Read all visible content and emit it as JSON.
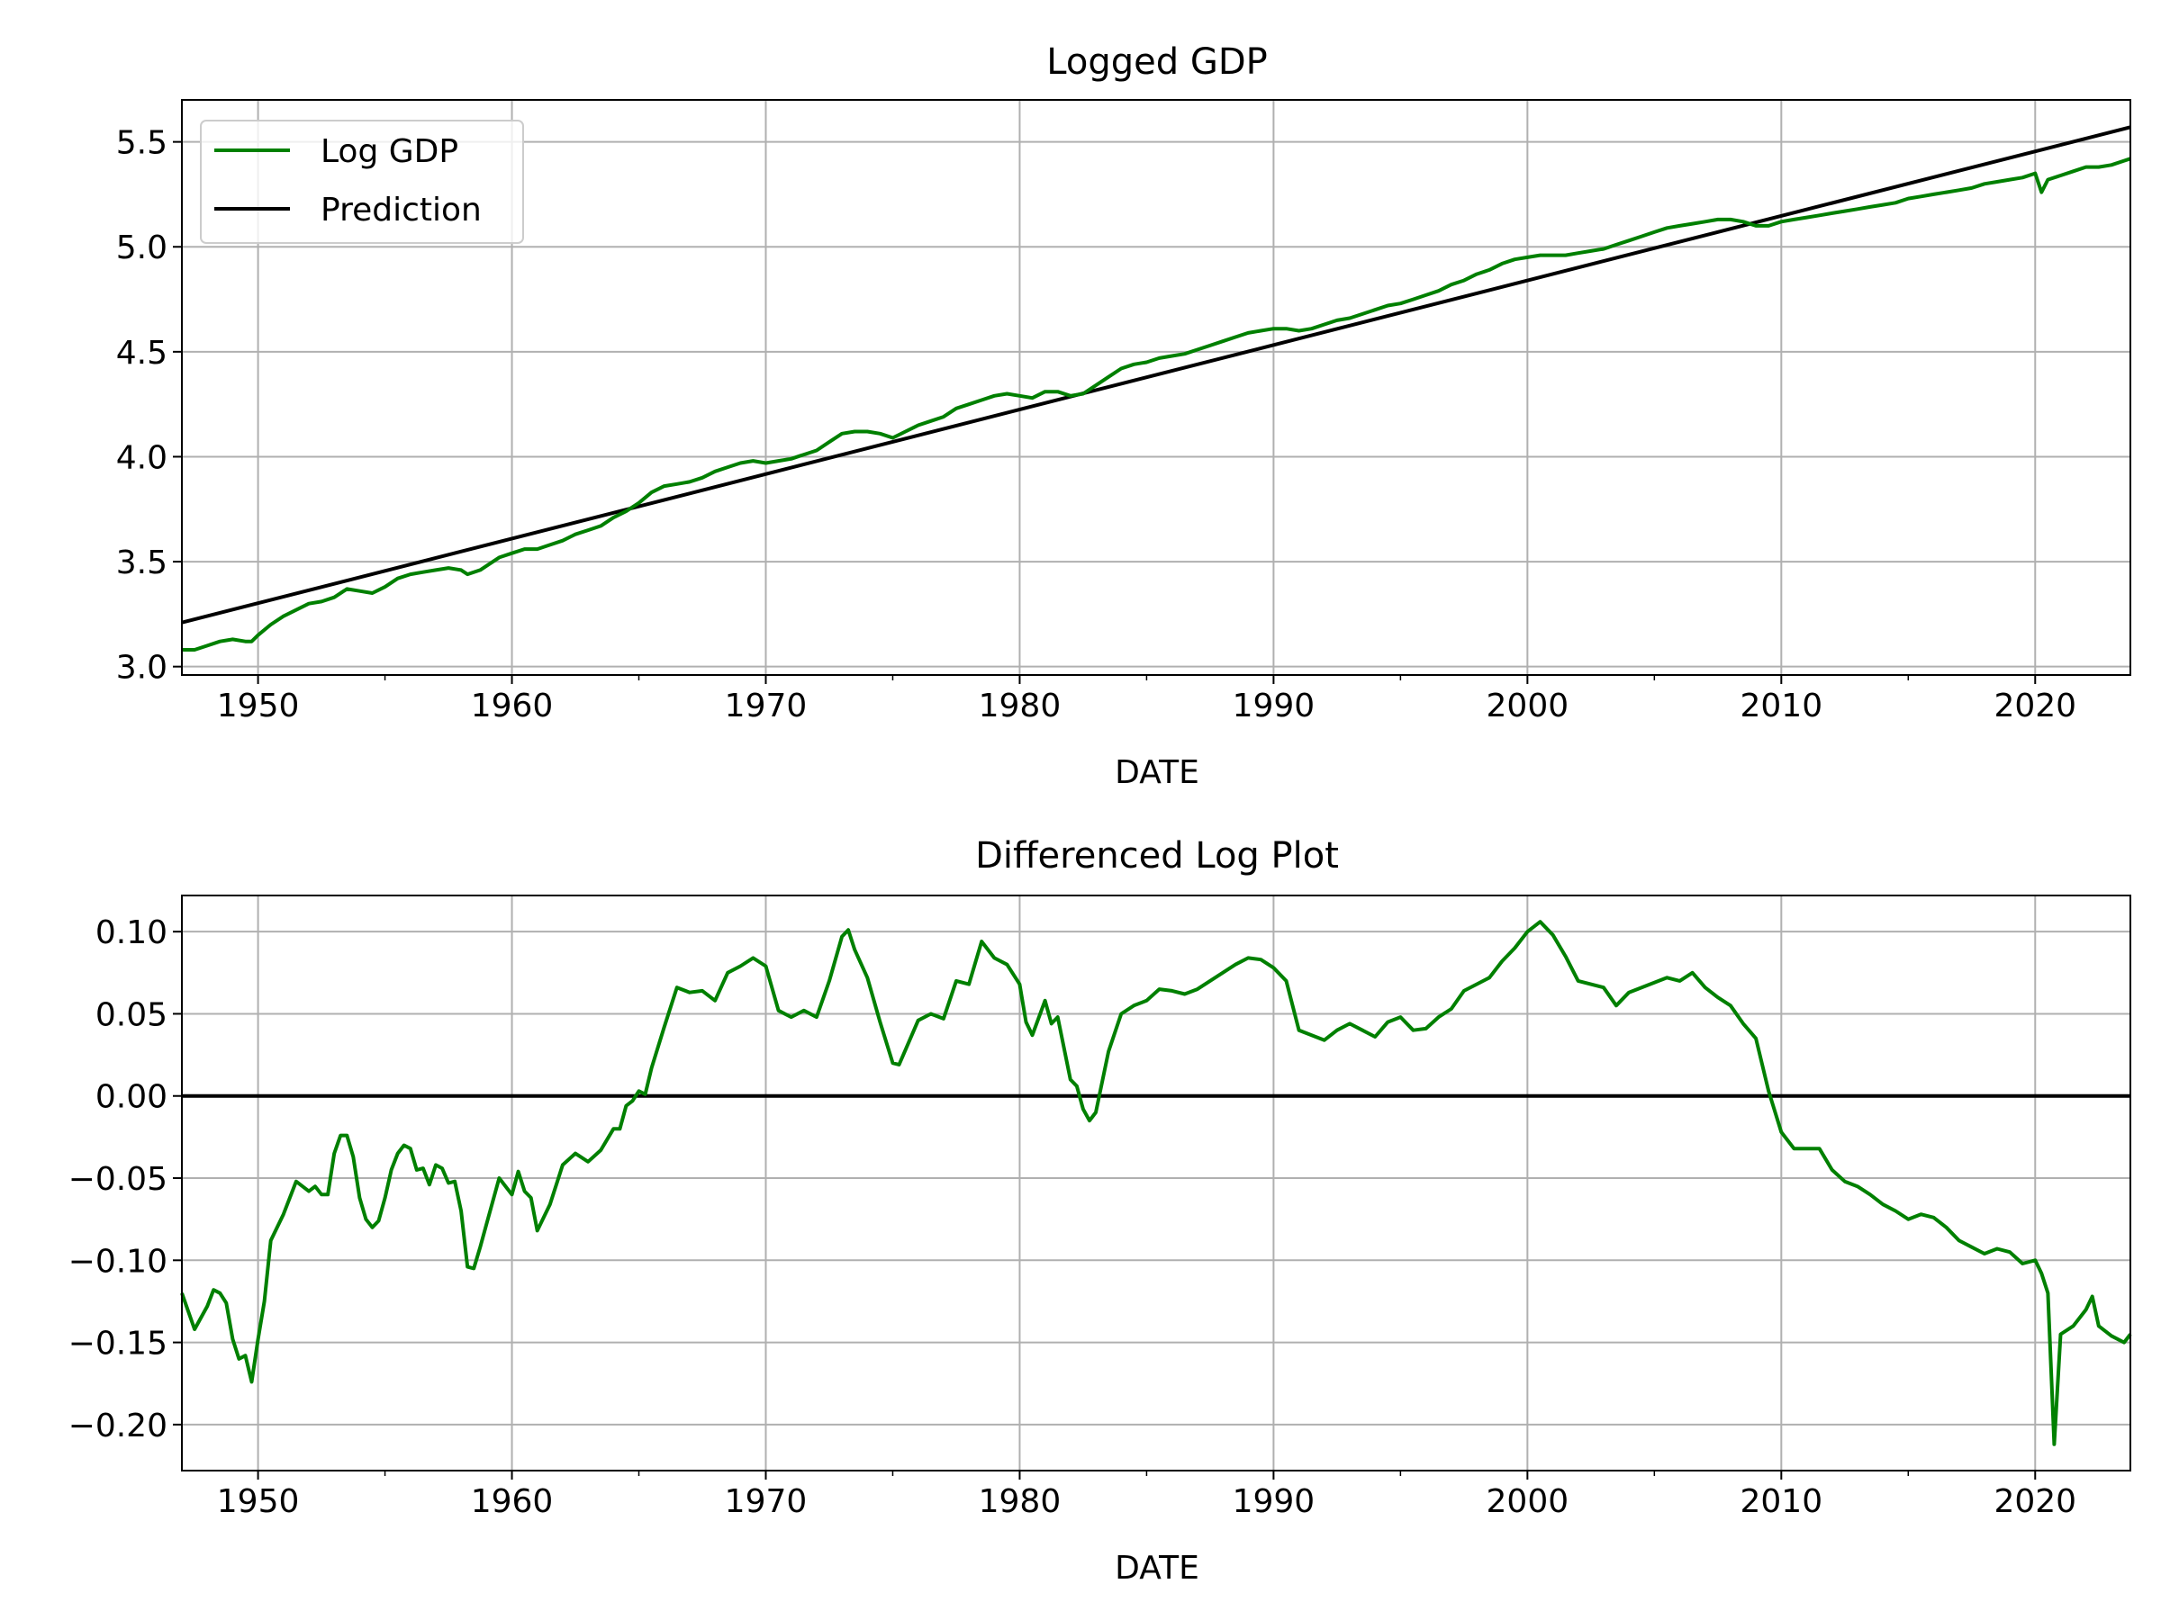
{
  "chart_data": [
    {
      "type": "line",
      "title": "Logged GDP",
      "xlabel": "DATE",
      "ylabel": "",
      "xlim": [
        1947.0,
        2023.75
      ],
      "ylim": [
        2.96,
        5.7
      ],
      "xticks": [
        1950,
        1960,
        1970,
        1980,
        1990,
        2000,
        2010,
        2020
      ],
      "xtick_labels": [
        "1950",
        "1960",
        "1970",
        "1980",
        "1990",
        "2000",
        "2010",
        "2020"
      ],
      "yticks": [
        3.0,
        3.5,
        4.0,
        4.5,
        5.0,
        5.5
      ],
      "ytick_labels": [
        "3.0",
        "3.5",
        "4.0",
        "4.5",
        "5.0",
        "5.5"
      ],
      "grid": true,
      "legend": "top-left",
      "series": [
        {
          "name": "Log GDP",
          "color": "#008000",
          "x": [
            1947.0,
            1947.5,
            1948.0,
            1948.5,
            1949.0,
            1949.5,
            1949.75,
            1950.0,
            1950.5,
            1951.0,
            1951.5,
            1952.0,
            1952.5,
            1953.0,
            1953.5,
            1954.0,
            1954.5,
            1955.0,
            1955.5,
            1956.0,
            1956.5,
            1957.0,
            1957.5,
            1958.0,
            1958.25,
            1958.75,
            1959.5,
            1960.0,
            1960.5,
            1961.0,
            1961.5,
            1962.0,
            1962.5,
            1963.0,
            1963.5,
            1964.0,
            1964.5,
            1965.0,
            1965.5,
            1966.0,
            1966.5,
            1967.0,
            1967.5,
            1968.0,
            1968.5,
            1969.0,
            1969.5,
            1970.0,
            1970.5,
            1971.0,
            1971.5,
            1972.0,
            1972.5,
            1973.0,
            1973.5,
            1974.0,
            1974.5,
            1975.0,
            1975.5,
            1976.0,
            1976.5,
            1977.0,
            1977.5,
            1978.0,
            1978.5,
            1979.0,
            1979.5,
            1980.0,
            1980.5,
            1981.0,
            1981.5,
            1982.0,
            1982.5,
            1983.0,
            1983.5,
            1984.0,
            1984.5,
            1985.0,
            1985.5,
            1986.0,
            1986.5,
            1987.0,
            1987.5,
            1988.0,
            1988.5,
            1989.0,
            1989.5,
            1990.0,
            1990.5,
            1991.0,
            1991.5,
            1992.0,
            1992.5,
            1993.0,
            1993.5,
            1994.0,
            1994.5,
            1995.0,
            1995.5,
            1996.0,
            1996.5,
            1997.0,
            1997.5,
            1998.0,
            1998.5,
            1999.0,
            1999.5,
            2000.0,
            2000.5,
            2001.0,
            2001.5,
            2002.0,
            2002.5,
            2003.0,
            2003.5,
            2004.0,
            2004.5,
            2005.0,
            2005.5,
            2006.0,
            2006.5,
            2007.0,
            2007.5,
            2008.0,
            2008.5,
            2009.0,
            2009.5,
            2010.0,
            2010.5,
            2011.0,
            2011.5,
            2012.0,
            2012.5,
            2013.0,
            2013.5,
            2014.0,
            2014.5,
            2015.0,
            2015.5,
            2016.0,
            2016.5,
            2017.0,
            2017.5,
            2018.0,
            2018.5,
            2019.0,
            2019.5,
            2020.0,
            2020.25,
            2020.5,
            2021.0,
            2021.5,
            2022.0,
            2022.5,
            2023.0,
            2023.5,
            2023.75
          ],
          "y": [
            3.08,
            3.08,
            3.1,
            3.12,
            3.13,
            3.12,
            3.12,
            3.15,
            3.2,
            3.24,
            3.27,
            3.3,
            3.31,
            3.33,
            3.37,
            3.36,
            3.35,
            3.38,
            3.42,
            3.44,
            3.45,
            3.46,
            3.47,
            3.46,
            3.44,
            3.46,
            3.52,
            3.54,
            3.56,
            3.56,
            3.58,
            3.6,
            3.63,
            3.65,
            3.67,
            3.71,
            3.74,
            3.78,
            3.83,
            3.86,
            3.87,
            3.88,
            3.9,
            3.93,
            3.95,
            3.97,
            3.98,
            3.97,
            3.98,
            3.99,
            4.01,
            4.03,
            4.07,
            4.11,
            4.12,
            4.12,
            4.11,
            4.09,
            4.12,
            4.15,
            4.17,
            4.19,
            4.23,
            4.25,
            4.27,
            4.29,
            4.3,
            4.29,
            4.28,
            4.31,
            4.31,
            4.29,
            4.3,
            4.34,
            4.38,
            4.42,
            4.44,
            4.45,
            4.47,
            4.48,
            4.49,
            4.51,
            4.53,
            4.55,
            4.57,
            4.59,
            4.6,
            4.61,
            4.61,
            4.6,
            4.61,
            4.63,
            4.65,
            4.66,
            4.68,
            4.7,
            4.72,
            4.73,
            4.75,
            4.77,
            4.79,
            4.82,
            4.84,
            4.87,
            4.89,
            4.92,
            4.94,
            4.95,
            4.96,
            4.96,
            4.96,
            4.97,
            4.98,
            4.99,
            5.01,
            5.03,
            5.05,
            5.07,
            5.09,
            5.1,
            5.11,
            5.12,
            5.13,
            5.13,
            5.12,
            5.1,
            5.1,
            5.12,
            5.13,
            5.14,
            5.15,
            5.16,
            5.17,
            5.18,
            5.19,
            5.2,
            5.21,
            5.23,
            5.24,
            5.25,
            5.26,
            5.27,
            5.28,
            5.3,
            5.31,
            5.32,
            5.33,
            5.35,
            5.26,
            5.32,
            5.34,
            5.36,
            5.38,
            5.38,
            5.39,
            5.41,
            5.42
          ]
        },
        {
          "name": "Prediction",
          "color": "#000000",
          "x": [
            1947.0,
            2023.75
          ],
          "y": [
            3.21,
            5.57
          ]
        }
      ]
    },
    {
      "type": "line",
      "title": "Differenced Log Plot",
      "xlabel": "DATE",
      "ylabel": "",
      "xlim": [
        1947.0,
        2023.75
      ],
      "ylim": [
        -0.228,
        0.122
      ],
      "xticks": [
        1950,
        1960,
        1970,
        1980,
        1990,
        2000,
        2010,
        2020
      ],
      "xtick_labels": [
        "1950",
        "1960",
        "1970",
        "1980",
        "1990",
        "2000",
        "2010",
        "2020"
      ],
      "yticks": [
        -0.2,
        -0.15,
        -0.1,
        -0.05,
        0.0,
        0.05,
        0.1
      ],
      "ytick_labels": [
        "−0.20",
        "−0.15",
        "−0.10",
        "−0.05",
        "0.00",
        "0.05",
        "0.10"
      ],
      "grid": true,
      "series": [
        {
          "color": "#008000",
          "x": [
            1947.0,
            1947.5,
            1948.0,
            1948.25,
            1948.5,
            1948.75,
            1949.0,
            1949.25,
            1949.5,
            1949.75,
            1950.0,
            1950.25,
            1950.5,
            1951.0,
            1951.5,
            1952.0,
            1952.25,
            1952.5,
            1952.75,
            1953.0,
            1953.25,
            1953.5,
            1953.75,
            1954.0,
            1954.25,
            1954.5,
            1954.75,
            1955.0,
            1955.25,
            1955.5,
            1955.75,
            1956.0,
            1956.25,
            1956.5,
            1956.75,
            1957.0,
            1957.25,
            1957.5,
            1957.75,
            1958.0,
            1958.25,
            1958.5,
            1958.75,
            1959.0,
            1959.5,
            1960.0,
            1960.25,
            1960.5,
            1960.75,
            1961.0,
            1961.5,
            1962.0,
            1962.5,
            1963.0,
            1963.5,
            1964.0,
            1964.25,
            1964.5,
            1964.75,
            1965.0,
            1965.25,
            1965.5,
            1966.0,
            1966.5,
            1967.0,
            1967.5,
            1968.0,
            1968.5,
            1969.0,
            1969.5,
            1970.0,
            1970.5,
            1970.75,
            1971.0,
            1971.5,
            1972.0,
            1972.5,
            1973.0,
            1973.25,
            1973.5,
            1974.0,
            1974.5,
            1975.0,
            1975.25,
            1975.5,
            1976.0,
            1976.5,
            1977.0,
            1977.5,
            1978.0,
            1978.5,
            1979.0,
            1979.5,
            1980.0,
            1980.25,
            1980.5,
            1981.0,
            1981.25,
            1981.5,
            1982.0,
            1982.25,
            1982.5,
            1982.75,
            1983.0,
            1983.5,
            1984.0,
            1984.5,
            1985.0,
            1985.5,
            1986.0,
            1986.5,
            1987.0,
            1987.5,
            1988.0,
            1988.5,
            1989.0,
            1989.5,
            1990.0,
            1990.5,
            1991.0,
            1991.5,
            1992.0,
            1992.5,
            1993.0,
            1993.5,
            1994.0,
            1994.5,
            1995.0,
            1995.5,
            1996.0,
            1996.5,
            1997.0,
            1997.5,
            1998.0,
            1998.5,
            1999.0,
            1999.5,
            2000.0,
            2000.5,
            2001.0,
            2001.5,
            2002.0,
            2002.5,
            2003.0,
            2003.5,
            2004.0,
            2004.5,
            2005.0,
            2005.5,
            2006.0,
            2006.5,
            2007.0,
            2007.5,
            2008.0,
            2008.5,
            2009.0,
            2009.5,
            2010.0,
            2010.5,
            2011.0,
            2011.5,
            2012.0,
            2012.5,
            2013.0,
            2013.5,
            2014.0,
            2014.5,
            2015.0,
            2015.5,
            2016.0,
            2016.5,
            2017.0,
            2017.5,
            2018.0,
            2018.5,
            2019.0,
            2019.5,
            2020.0,
            2020.25,
            2020.5,
            2020.75,
            2021.0,
            2021.5,
            2022.0,
            2022.25,
            2022.5,
            2023.0,
            2023.5,
            2023.75
          ],
          "y": [
            -0.12,
            -0.142,
            -0.128,
            -0.118,
            -0.12,
            -0.126,
            -0.148,
            -0.16,
            -0.158,
            -0.174,
            -0.148,
            -0.125,
            -0.088,
            -0.072,
            -0.052,
            -0.058,
            -0.055,
            -0.06,
            -0.06,
            -0.035,
            -0.024,
            -0.024,
            -0.037,
            -0.062,
            -0.075,
            -0.08,
            -0.076,
            -0.062,
            -0.045,
            -0.035,
            -0.03,
            -0.032,
            -0.045,
            -0.044,
            -0.054,
            -0.042,
            -0.044,
            -0.053,
            -0.052,
            -0.07,
            -0.104,
            -0.105,
            -0.092,
            -0.078,
            -0.05,
            -0.06,
            -0.046,
            -0.058,
            -0.062,
            -0.082,
            -0.066,
            -0.042,
            -0.035,
            -0.04,
            -0.033,
            -0.02,
            -0.02,
            -0.006,
            -0.003,
            0.003,
            0.001,
            0.017,
            0.042,
            0.066,
            0.063,
            0.064,
            0.058,
            0.075,
            0.079,
            0.084,
            0.079,
            0.052,
            0.05,
            0.048,
            0.052,
            0.048,
            0.07,
            0.097,
            0.101,
            0.089,
            0.072,
            0.045,
            0.02,
            0.019,
            0.028,
            0.046,
            0.05,
            0.047,
            0.07,
            0.068,
            0.094,
            0.084,
            0.08,
            0.068,
            0.045,
            0.037,
            0.058,
            0.044,
            0.048,
            0.01,
            0.006,
            -0.008,
            -0.015,
            -0.01,
            0.027,
            0.05,
            0.055,
            0.058,
            0.065,
            0.064,
            0.062,
            0.065,
            0.07,
            0.075,
            0.08,
            0.084,
            0.083,
            0.078,
            0.07,
            0.04,
            0.037,
            0.034,
            0.04,
            0.044,
            0.04,
            0.036,
            0.045,
            0.048,
            0.04,
            0.041,
            0.048,
            0.053,
            0.064,
            0.068,
            0.072,
            0.082,
            0.09,
            0.1,
            0.106,
            0.098,
            0.085,
            0.07,
            0.068,
            0.066,
            0.055,
            0.063,
            0.066,
            0.069,
            0.072,
            0.07,
            0.075,
            0.066,
            0.06,
            0.055,
            0.044,
            0.035,
            0.003,
            -0.022,
            -0.032,
            -0.032,
            -0.032,
            -0.045,
            -0.052,
            -0.055,
            -0.06,
            -0.066,
            -0.07,
            -0.075,
            -0.072,
            -0.074,
            -0.08,
            -0.088,
            -0.092,
            -0.096,
            -0.093,
            -0.095,
            -0.102,
            -0.1,
            -0.108,
            -0.12,
            -0.212,
            -0.145,
            -0.14,
            -0.13,
            -0.122,
            -0.14,
            -0.146,
            -0.15,
            -0.145
          ]
        }
      ],
      "reference_lines": [
        {
          "axis": "y",
          "value": 0.0,
          "color": "#000000"
        }
      ]
    }
  ]
}
